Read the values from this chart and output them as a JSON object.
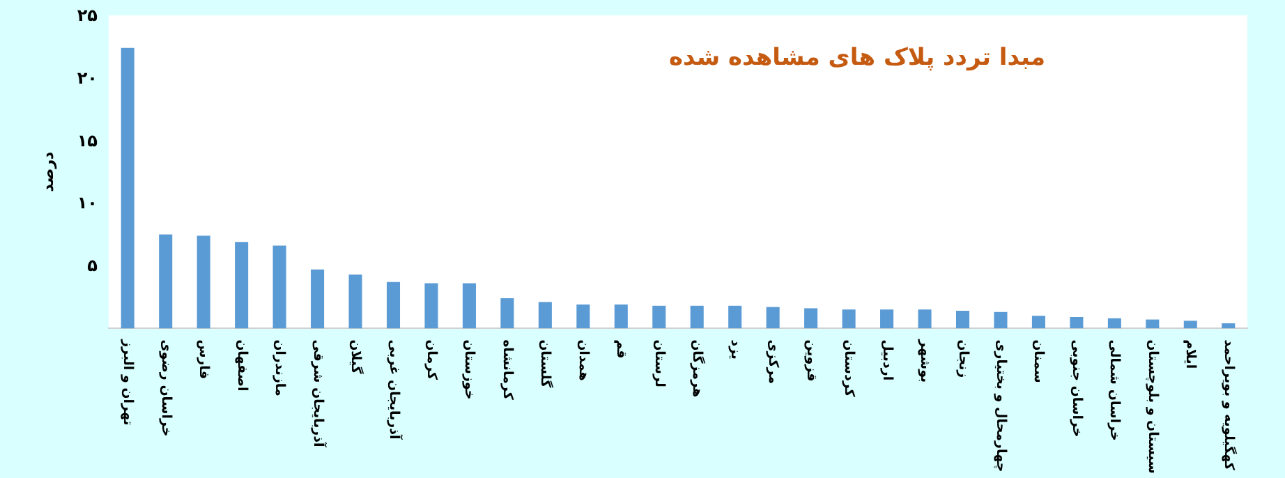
{
  "chart_data": {
    "type": "bar",
    "title": "مبدا تردد پلاک های مشاهده شده",
    "ylabel": "درصد",
    "categories": [
      "تهران و البرز",
      "خراسان رضوی",
      "فارس",
      "اصفهان",
      "مازندران",
      "آذربایجان شرقی",
      "گیلان",
      "آذربایجان غربی",
      "کرمان",
      "خوزستان",
      "کرمانشاه",
      "گلستان",
      "همدان",
      "قم",
      "لرستان",
      "هرمزگان",
      "یزد",
      "مرکزی",
      "قزوین",
      "کردستان",
      "اردبیل",
      "بوشهر",
      "زنجان",
      "چهارمحال و بختیاری",
      "سمنان",
      "خراسان جنوبی",
      "خراسان شمالی",
      "سیستان و بلوچستان",
      "ایلام",
      "کهگیلویه و بویراحمد"
    ],
    "values": [
      22.4,
      7.5,
      7.4,
      6.9,
      6.6,
      4.7,
      4.3,
      3.7,
      3.6,
      3.6,
      2.4,
      2.1,
      1.9,
      1.9,
      1.8,
      1.8,
      1.8,
      1.7,
      1.6,
      1.5,
      1.5,
      1.5,
      1.4,
      1.3,
      1.0,
      0.9,
      0.8,
      0.7,
      0.6,
      0.4
    ],
    "color": "#5b9bd5",
    "ylim": [
      0,
      25
    ],
    "yticks": [
      {
        "value": 5,
        "label": "۵"
      },
      {
        "value": 10,
        "label": "۱۰"
      },
      {
        "value": 15,
        "label": "۱۵"
      },
      {
        "value": 20,
        "label": "۲۰"
      },
      {
        "value": 25,
        "label": "۲۵"
      }
    ],
    "grid": false
  }
}
